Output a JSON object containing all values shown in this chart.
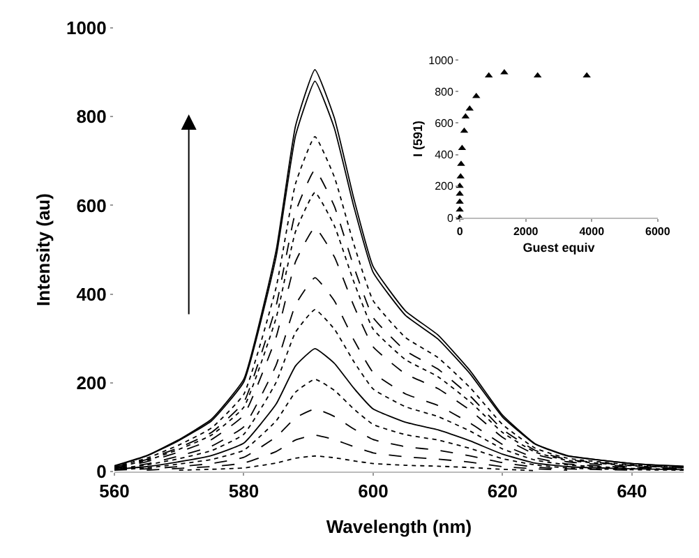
{
  "chart_data": [
    {
      "type": "line",
      "xlabel": "Wavelength (nm)",
      "ylabel": "Intensity (au)",
      "xlim": [
        560,
        648
      ],
      "xticks": [
        560,
        580,
        600,
        620,
        640
      ],
      "ylim": [
        0,
        1000
      ],
      "yticks": [
        0,
        200,
        400,
        600,
        800,
        1000
      ],
      "x": [
        560,
        565,
        570,
        575,
        580,
        585,
        588,
        591,
        594,
        597,
        600,
        605,
        610,
        615,
        620,
        625,
        630,
        640,
        648
      ],
      "series": [
        {
          "color": "#000000",
          "line_style": "solid",
          "values": [
            13,
            36,
            72,
            118,
            208,
            498,
            779,
            906,
            797,
            616,
            462,
            362,
            308,
            227,
            127,
            63,
            36,
            18,
            12
          ]
        },
        {
          "color": "#000000",
          "line_style": "solid",
          "values": [
            12,
            35,
            70,
            114,
            202,
            484,
            757,
            880,
            774,
            598,
            449,
            352,
            299,
            220,
            123,
            62,
            35,
            18,
            11
          ]
        },
        {
          "color": "#000000",
          "line_style": "dotted",
          "values": [
            11,
            30,
            60,
            98,
            174,
            415,
            649,
            755,
            664,
            513,
            385,
            302,
            257,
            189,
            106,
            53,
            30,
            15,
            10
          ]
        },
        {
          "color": "#000000",
          "line_style": "dashed",
          "values": [
            10,
            27,
            54,
            88,
            156,
            374,
            585,
            680,
            598,
            462,
            347,
            272,
            231,
            170,
            95,
            48,
            27,
            14,
            9
          ]
        },
        {
          "color": "#000000",
          "line_style": "dotted",
          "values": [
            9,
            25,
            50,
            82,
            145,
            346,
            541,
            629,
            554,
            428,
            321,
            252,
            214,
            157,
            88,
            44,
            25,
            13,
            8
          ]
        },
        {
          "color": "#000000",
          "line_style": "dashed",
          "values": [
            8,
            22,
            44,
            72,
            127,
            303,
            473,
            550,
            484,
            374,
            281,
            220,
            187,
            138,
            77,
            39,
            22,
            11,
            7
          ]
        },
        {
          "color": "#000000",
          "line_style": "dashed",
          "values": [
            7,
            17,
            35,
            57,
            101,
            240,
            376,
            437,
            385,
            297,
            223,
            175,
            149,
            109,
            61,
            31,
            17,
            9,
            6
          ]
        },
        {
          "color": "#000000",
          "line_style": "dotted",
          "values": [
            6,
            15,
            29,
            47,
            84,
            201,
            314,
            365,
            321,
            248,
            186,
            146,
            124,
            91,
            51,
            26,
            15,
            7,
            5
          ]
        },
        {
          "color": "#000000",
          "line_style": "solid",
          "values": [
            5,
            11,
            22,
            36,
            64,
            152,
            238,
            277,
            244,
            188,
            141,
            111,
            94,
            69,
            39,
            19,
            11,
            6,
            4
          ]
        },
        {
          "color": "#000000",
          "line_style": "dotted",
          "values": [
            4,
            8,
            17,
            27,
            48,
            114,
            179,
            208,
            183,
            141,
            106,
            83,
            71,
            52,
            29,
            15,
            8,
            4,
            3
          ]
        },
        {
          "color": "#000000",
          "line_style": "dashed",
          "values": [
            3,
            6,
            11,
            18,
            32,
            78,
            121,
            141,
            124,
            96,
            72,
            56,
            48,
            35,
            20,
            10,
            6,
            3,
            null
          ]
        },
        {
          "color": "#000000",
          "line_style": "dashed",
          "values": [
            null,
            3,
            7,
            11,
            19,
            45,
            71,
            82,
            72,
            56,
            42,
            33,
            28,
            21,
            11,
            6,
            3,
            null,
            null
          ]
        },
        {
          "color": "#000000",
          "line_style": "dotted",
          "values": [
            null,
            null,
            3,
            5,
            8,
            19,
            30,
            35,
            31,
            24,
            18,
            14,
            12,
            9,
            5,
            2,
            null,
            null,
            null
          ]
        }
      ]
    },
    {
      "type": "scatter",
      "xlabel": "Guest equiv",
      "ylabel": "I (591)",
      "xlim": [
        0,
        6000
      ],
      "xticks": [
        0,
        2000,
        4000,
        6000
      ],
      "ylim": [
        0,
        1000
      ],
      "yticks": [
        0,
        200,
        400,
        600,
        800,
        1000
      ],
      "marker": "triangle",
      "series": [
        {
          "color": "#000000",
          "x": [
            0,
            0,
            0,
            0,
            0,
            25,
            40,
            70,
            135,
            175,
            300,
            500,
            880,
            1350,
            2360,
            3850
          ],
          "values": [
            0,
            50,
            100,
            150,
            200,
            260,
            340,
            440,
            550,
            640,
            690,
            770,
            900,
            920,
            900,
            900
          ]
        }
      ]
    }
  ]
}
